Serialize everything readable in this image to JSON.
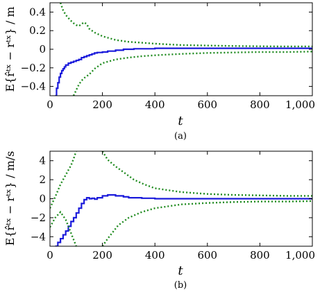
{
  "chart_data": [
    {
      "type": "line",
      "caption": "(a)",
      "xlabel": "t",
      "ylabel": "E{r̂ᵗˣ − rᵗˣ} / m",
      "xlim": [
        0,
        1000
      ],
      "ylim": [
        -0.5,
        0.5
      ],
      "xticks": [
        0,
        200,
        400,
        600,
        800,
        1000
      ],
      "xtick_labels": [
        "0",
        "200",
        "400",
        "600",
        "800",
        "1,000"
      ],
      "yticks": [
        -0.4,
        -0.2,
        0,
        0.2,
        0.4
      ],
      "ytick_labels": [
        "−0.4",
        "−0.2",
        "0",
        "0.2",
        "0.4"
      ],
      "series": [
        {
          "role": "mean",
          "color": "#1a1adb",
          "style": "solid-step",
          "x": [
            20,
            25,
            30,
            35,
            40,
            45,
            50,
            55,
            60,
            70,
            80,
            90,
            100,
            110,
            120,
            130,
            140,
            150,
            160,
            170,
            180,
            200,
            220,
            250,
            280,
            320,
            400,
            500,
            600,
            800,
            1000
          ],
          "y": [
            -0.5,
            -0.42,
            -0.36,
            -0.3,
            -0.26,
            -0.23,
            -0.21,
            -0.19,
            -0.17,
            -0.15,
            -0.14,
            -0.13,
            -0.12,
            -0.11,
            -0.09,
            -0.08,
            -0.07,
            -0.06,
            -0.05,
            -0.04,
            -0.035,
            -0.03,
            -0.02,
            -0.01,
            0.0,
            0.005,
            0.01,
            0.01,
            0.01,
            0.01,
            0.01
          ]
        },
        {
          "role": "upper-bound",
          "color": "#1e8a1e",
          "style": "dotted",
          "x": [
            40,
            50,
            60,
            75,
            90,
            100,
            110,
            120,
            130,
            140,
            150,
            170,
            200,
            250,
            300,
            350,
            400,
            500,
            600,
            700,
            800,
            900,
            1000
          ],
          "y": [
            0.5,
            0.42,
            0.37,
            0.32,
            0.28,
            0.26,
            0.25,
            0.27,
            0.29,
            0.27,
            0.22,
            0.18,
            0.14,
            0.1,
            0.08,
            0.07,
            0.06,
            0.045,
            0.04,
            0.035,
            0.032,
            0.03,
            0.03
          ]
        },
        {
          "role": "lower-bound",
          "color": "#1e8a1e",
          "style": "dotted",
          "x": [
            90,
            100,
            110,
            120,
            130,
            150,
            170,
            200,
            250,
            300,
            350,
            400,
            500,
            600,
            700,
            800,
            900,
            1000
          ],
          "y": [
            -0.5,
            -0.44,
            -0.38,
            -0.34,
            -0.31,
            -0.27,
            -0.21,
            -0.15,
            -0.11,
            -0.09,
            -0.075,
            -0.065,
            -0.05,
            -0.04,
            -0.035,
            -0.03,
            -0.03,
            -0.025
          ]
        }
      ]
    },
    {
      "type": "line",
      "caption": "(b)",
      "xlabel": "t",
      "ylabel": "E{r̂ᵗˣ − rᵗˣ} / m/s",
      "xlim": [
        0,
        1000
      ],
      "ylim": [
        -5,
        5
      ],
      "xticks": [
        0,
        200,
        400,
        600,
        800,
        1000
      ],
      "xtick_labels": [
        "0",
        "200",
        "400",
        "600",
        "800",
        "1,000"
      ],
      "yticks": [
        -4,
        -2,
        0,
        2,
        4
      ],
      "ytick_labels": [
        "−4",
        "−2",
        "0",
        "2",
        "4"
      ],
      "series": [
        {
          "role": "mean",
          "color": "#1a1adb",
          "style": "solid-step",
          "x": [
            20,
            30,
            40,
            50,
            60,
            70,
            80,
            90,
            100,
            110,
            120,
            130,
            140,
            150,
            160,
            170,
            180,
            200,
            220,
            250,
            280,
            300,
            350,
            400,
            500,
            600,
            800,
            1000
          ],
          "y": [
            -5,
            -4.6,
            -4.2,
            -3.8,
            -3.4,
            -2.9,
            -2.4,
            -2.0,
            -1.5,
            -1.0,
            -0.5,
            -0.1,
            0.1,
            0.0,
            0.05,
            -0.05,
            0.1,
            0.3,
            0.4,
            0.3,
            0.2,
            0.1,
            0.05,
            0.0,
            0.0,
            0.0,
            0.0,
            0.0
          ]
        },
        {
          "role": "upper-bound",
          "color": "#1e8a1e",
          "style": "dotted",
          "x": [
            0,
            20,
            40,
            60,
            80,
            90,
            100
          ],
          "y": [
            -1.0,
            0.2,
            1.5,
            2.5,
            3.5,
            4.2,
            5
          ]
        },
        {
          "role": "upper-bound",
          "color": "#1e8a1e",
          "style": "dotted",
          "x": [
            200,
            220,
            250,
            280,
            320,
            360,
            400,
            500,
            600,
            700,
            800,
            900,
            1000
          ],
          "y": [
            5,
            4.1,
            3.4,
            2.8,
            2.0,
            1.5,
            1.1,
            0.7,
            0.5,
            0.4,
            0.35,
            0.3,
            0.3
          ]
        },
        {
          "role": "lower-bound",
          "color": "#1e8a1e",
          "style": "dotted",
          "x": [
            0,
            20,
            40,
            60,
            80,
            100
          ],
          "y": [
            -3.0,
            -2.0,
            -1.4,
            -2.2,
            -3.6,
            -5
          ]
        },
        {
          "role": "lower-bound",
          "color": "#1e8a1e",
          "style": "dotted",
          "x": [
            200,
            220,
            240,
            260,
            300,
            350,
            400,
            500,
            600,
            700,
            800,
            900,
            1000
          ],
          "y": [
            -5,
            -4.2,
            -3.5,
            -2.8,
            -2.0,
            -1.4,
            -1.0,
            -0.6,
            -0.45,
            -0.35,
            -0.3,
            -0.3,
            -0.25
          ]
        }
      ]
    }
  ]
}
